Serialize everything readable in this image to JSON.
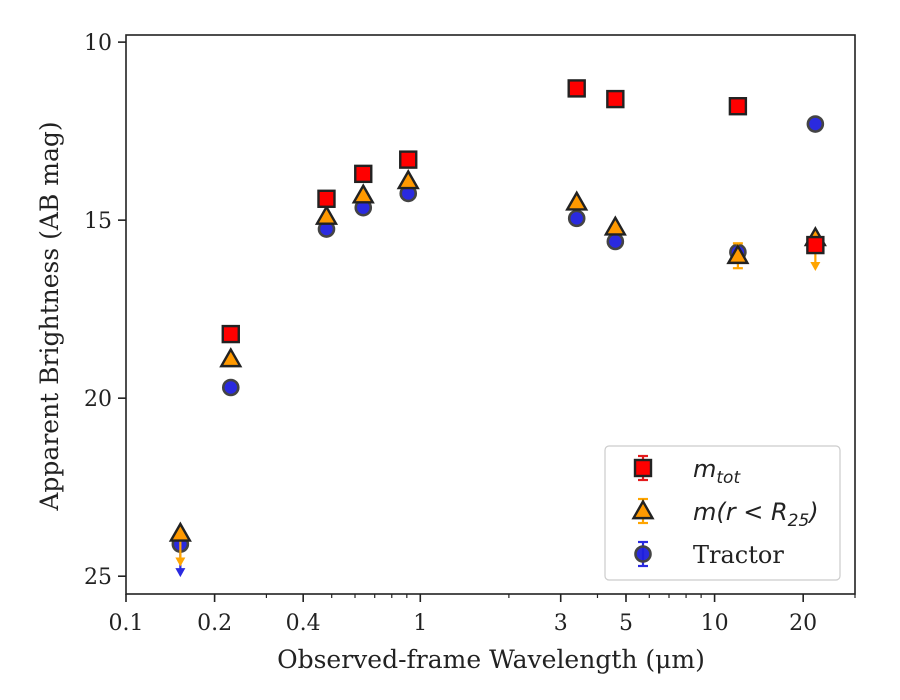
{
  "chart_data": {
    "type": "scatter",
    "title": "",
    "xlabel": "Observed-frame Wavelength (μm)",
    "ylabel": "Apparent Brightness (AB mag)",
    "xscale": "log",
    "xlim": [
      0.1,
      30
    ],
    "ylim": [
      25.5,
      9.8
    ],
    "y_inverted": true,
    "x_ticks": [
      {
        "value": 0.1,
        "label": "0.1"
      },
      {
        "value": 0.2,
        "label": "0.2"
      },
      {
        "value": 0.4,
        "label": "0.4"
      },
      {
        "value": 1,
        "label": "1"
      },
      {
        "value": 3,
        "label": "3"
      },
      {
        "value": 5,
        "label": "5"
      },
      {
        "value": 10,
        "label": "10"
      },
      {
        "value": 20,
        "label": "20"
      }
    ],
    "y_ticks": [
      {
        "value": 10,
        "label": "10"
      },
      {
        "value": 15,
        "label": "15"
      },
      {
        "value": 20,
        "label": "20"
      },
      {
        "value": 25,
        "label": "25"
      }
    ],
    "grid": false,
    "legend_position": "bottom-right",
    "series": [
      {
        "name": "m_tot",
        "legend_label": {
          "main": "m",
          "sub": "tot"
        },
        "marker": "square",
        "color": "#ff0000",
        "edgecolor": "#222222",
        "errorcolor": "#e41a1c",
        "points": [
          {
            "x": 0.227,
            "y": 18.2
          },
          {
            "x": 0.48,
            "y": 14.4
          },
          {
            "x": 0.64,
            "y": 13.7
          },
          {
            "x": 0.91,
            "y": 13.3
          },
          {
            "x": 3.4,
            "y": 11.3
          },
          {
            "x": 4.6,
            "y": 11.6
          },
          {
            "x": 12.0,
            "y": 11.8
          },
          {
            "x": 22.0,
            "y": 15.7
          }
        ]
      },
      {
        "name": "m(r<R_25)",
        "legend_label": {
          "main": "m(r < R",
          "sub": "25",
          "end": ")"
        },
        "marker": "triangle",
        "color": "#ff9900",
        "edgecolor": "#222222",
        "errorcolor": "#ffa500",
        "points": [
          {
            "x": 0.153,
            "y": 23.8,
            "upper_limit": true
          },
          {
            "x": 0.227,
            "y": 18.9
          },
          {
            "x": 0.48,
            "y": 14.9
          },
          {
            "x": 0.64,
            "y": 14.3
          },
          {
            "x": 0.91,
            "y": 13.9
          },
          {
            "x": 3.4,
            "y": 14.5
          },
          {
            "x": 4.6,
            "y": 15.2
          },
          {
            "x": 12.0,
            "y": 16.0,
            "err": 0.35
          },
          {
            "x": 22.0,
            "y": 15.5,
            "upper_limit": true
          }
        ]
      },
      {
        "name": "Tractor",
        "legend_label": {
          "main": "Tractor"
        },
        "marker": "circle",
        "color": "#1f1fdd",
        "edgecolor": "#444444",
        "errorcolor": "#2a2ae0",
        "points": [
          {
            "x": 0.153,
            "y": 24.1,
            "upper_limit": true
          },
          {
            "x": 0.227,
            "y": 19.7
          },
          {
            "x": 0.48,
            "y": 15.25
          },
          {
            "x": 0.64,
            "y": 14.65
          },
          {
            "x": 0.91,
            "y": 14.25
          },
          {
            "x": 3.4,
            "y": 14.95
          },
          {
            "x": 4.6,
            "y": 15.6
          },
          {
            "x": 12.0,
            "y": 15.9
          },
          {
            "x": 22.0,
            "y": 12.3
          }
        ]
      }
    ]
  }
}
